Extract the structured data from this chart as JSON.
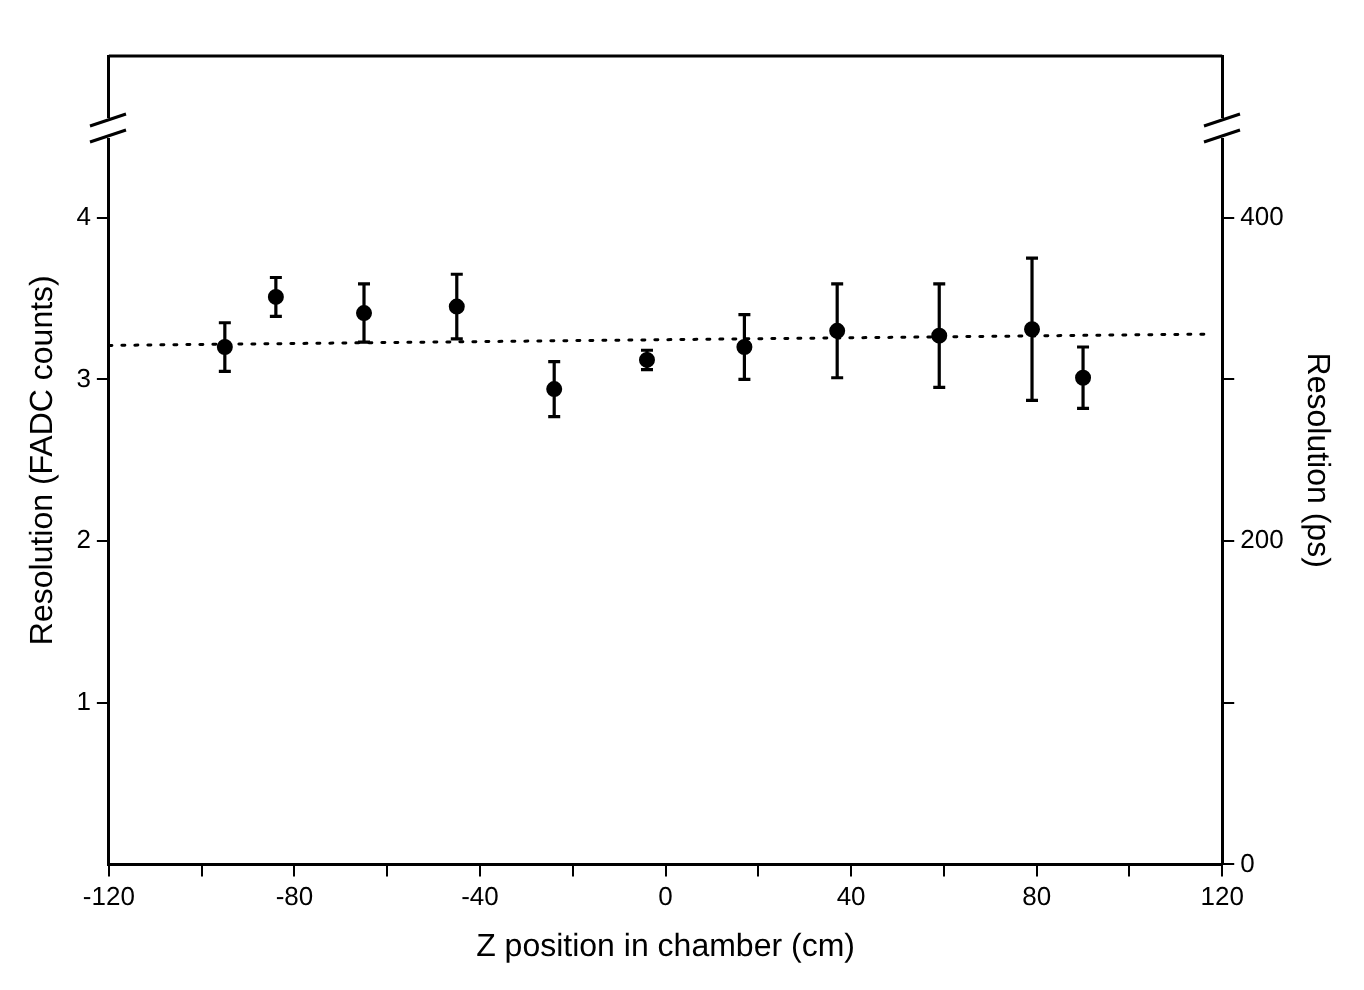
{
  "chart_data": {
    "type": "scatter",
    "xlabel": "Z position in chamber (cm)",
    "ylabel": "Resolution (FADC counts)",
    "y2label": "Resolution (ps)",
    "xlim": [
      -120,
      120
    ],
    "xticks": [
      -120,
      {
        "value": -100,
        "label": null
      },
      -80,
      {
        "value": -60,
        "label": null
      },
      -40,
      {
        "value": -20,
        "label": null
      },
      0,
      {
        "value": 20,
        "label": null
      },
      40,
      {
        "value": 60,
        "label": null
      },
      80,
      {
        "value": 100,
        "label": null
      },
      120
    ],
    "ylim": [
      0,
      5
    ],
    "yticks": [
      1,
      2,
      3,
      4
    ],
    "y2lim": [
      0,
      500
    ],
    "y2ticks": [
      0,
      {
        "value": 100,
        "label": null
      },
      200,
      {
        "value": 300,
        "label": null
      },
      400
    ],
    "grid": false,
    "legend": false,
    "series": [
      {
        "color": "#000000",
        "marker": "circle",
        "x": [
          -95,
          -84,
          -65,
          -45,
          -24,
          -4,
          17,
          37,
          59,
          79,
          90
        ],
        "values": [
          3.2,
          3.51,
          3.41,
          3.45,
          2.94,
          3.12,
          3.2,
          3.3,
          3.27,
          3.31,
          3.01
        ],
        "errors": [
          0.15,
          0.12,
          0.18,
          0.2,
          0.17,
          0.06,
          0.2,
          0.29,
          0.32,
          0.44,
          0.19
        ]
      },
      {
        "type": "line",
        "color": "#000000",
        "line_style": "dotted",
        "marker": "none",
        "x": [
          -120,
          117
        ],
        "values": [
          3.21,
          3.28
        ]
      }
    ]
  }
}
